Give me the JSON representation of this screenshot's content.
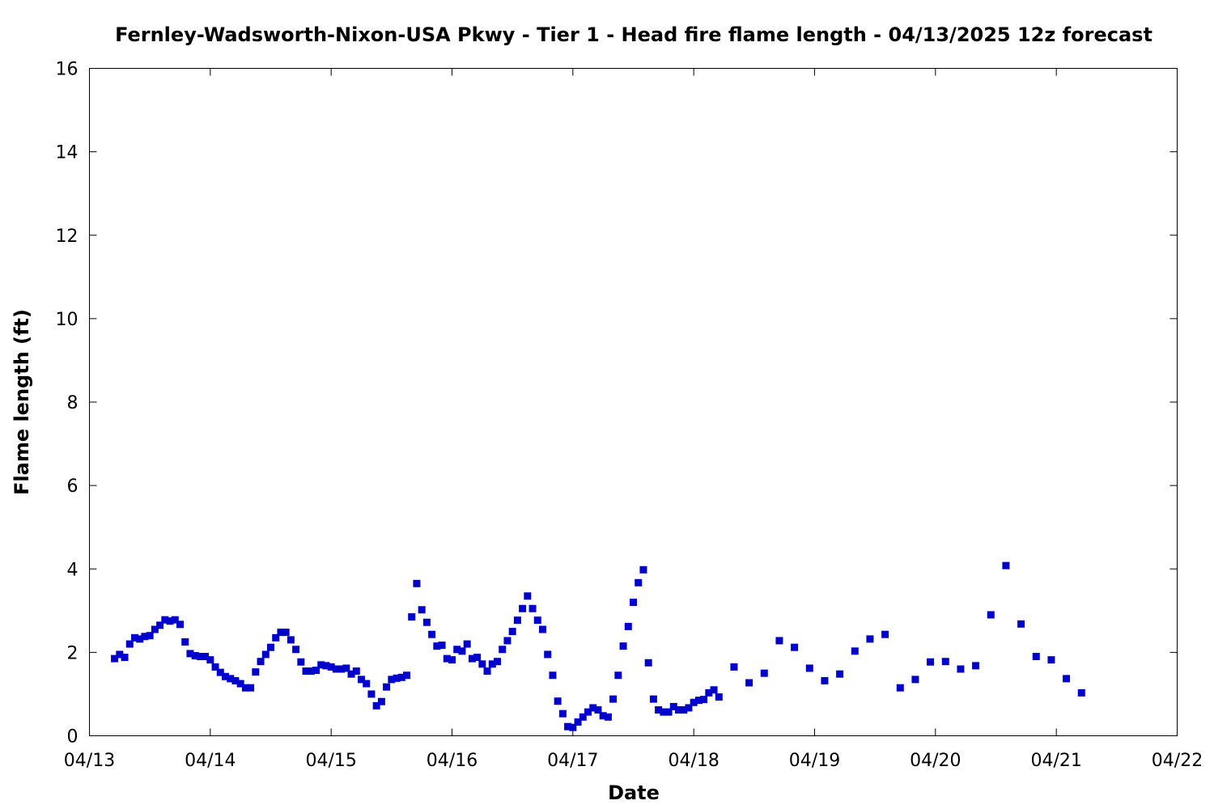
{
  "chart_data": {
    "type": "scatter",
    "title": "Fernley-Wadsworth-Nixon-USA Pkwy - Tier 1 - Head fire flame length - 04/13/2025 12z forecast",
    "xlabel": "Date",
    "ylabel": "Flame length (ft)",
    "xlim": [
      "2025-04-13T00:00",
      "2025-04-22T00:00"
    ],
    "ylim": [
      0,
      16
    ],
    "xticks": [
      "04/13",
      "04/14",
      "04/15",
      "04/16",
      "04/17",
      "04/18",
      "04/19",
      "04/20",
      "04/21",
      "04/22"
    ],
    "yticks": [
      0,
      2,
      4,
      6,
      8,
      10,
      12,
      14,
      16
    ],
    "grid": false,
    "marker_color": "#0000cc",
    "series": [
      {
        "x": [
          "2025-04-13T05:00",
          "2025-04-13T06:00",
          "2025-04-13T07:00",
          "2025-04-13T08:00",
          "2025-04-13T09:00",
          "2025-04-13T10:00",
          "2025-04-13T11:00",
          "2025-04-13T12:00",
          "2025-04-13T13:00",
          "2025-04-13T14:00",
          "2025-04-13T15:00",
          "2025-04-13T16:00",
          "2025-04-13T17:00",
          "2025-04-13T18:00",
          "2025-04-13T19:00",
          "2025-04-13T20:00",
          "2025-04-13T21:00",
          "2025-04-13T22:00",
          "2025-04-13T23:00",
          "2025-04-14T00:00",
          "2025-04-14T01:00",
          "2025-04-14T02:00",
          "2025-04-14T03:00",
          "2025-04-14T04:00",
          "2025-04-14T05:00",
          "2025-04-14T06:00",
          "2025-04-14T07:00",
          "2025-04-14T08:00",
          "2025-04-14T09:00",
          "2025-04-14T10:00",
          "2025-04-14T11:00",
          "2025-04-14T12:00",
          "2025-04-14T13:00",
          "2025-04-14T14:00",
          "2025-04-14T15:00",
          "2025-04-14T16:00",
          "2025-04-14T17:00",
          "2025-04-14T18:00",
          "2025-04-14T19:00",
          "2025-04-14T20:00",
          "2025-04-14T21:00",
          "2025-04-14T22:00",
          "2025-04-14T23:00",
          "2025-04-15T00:00",
          "2025-04-15T01:00",
          "2025-04-15T02:00",
          "2025-04-15T03:00",
          "2025-04-15T04:00",
          "2025-04-15T05:00",
          "2025-04-15T06:00",
          "2025-04-15T07:00",
          "2025-04-15T08:00",
          "2025-04-15T09:00",
          "2025-04-15T10:00",
          "2025-04-15T11:00",
          "2025-04-15T12:00",
          "2025-04-15T13:00",
          "2025-04-15T14:00",
          "2025-04-15T15:00",
          "2025-04-15T16:00",
          "2025-04-15T17:00",
          "2025-04-15T18:00",
          "2025-04-15T19:00",
          "2025-04-15T20:00",
          "2025-04-15T21:00",
          "2025-04-15T22:00",
          "2025-04-15T23:00",
          "2025-04-16T00:00",
          "2025-04-16T01:00",
          "2025-04-16T02:00",
          "2025-04-16T03:00",
          "2025-04-16T04:00",
          "2025-04-16T05:00",
          "2025-04-16T06:00",
          "2025-04-16T07:00",
          "2025-04-16T08:00",
          "2025-04-16T09:00",
          "2025-04-16T10:00",
          "2025-04-16T11:00",
          "2025-04-16T12:00",
          "2025-04-16T13:00",
          "2025-04-16T14:00",
          "2025-04-16T15:00",
          "2025-04-16T16:00",
          "2025-04-16T17:00",
          "2025-04-16T18:00",
          "2025-04-16T19:00",
          "2025-04-16T20:00",
          "2025-04-16T21:00",
          "2025-04-16T22:00",
          "2025-04-16T23:00",
          "2025-04-17T00:00",
          "2025-04-17T01:00",
          "2025-04-17T02:00",
          "2025-04-17T03:00",
          "2025-04-17T04:00",
          "2025-04-17T05:00",
          "2025-04-17T06:00",
          "2025-04-17T07:00",
          "2025-04-17T08:00",
          "2025-04-17T09:00",
          "2025-04-17T10:00",
          "2025-04-17T11:00",
          "2025-04-17T12:00",
          "2025-04-17T13:00",
          "2025-04-17T14:00",
          "2025-04-17T15:00",
          "2025-04-17T16:00",
          "2025-04-17T17:00",
          "2025-04-17T18:00",
          "2025-04-17T19:00",
          "2025-04-17T20:00",
          "2025-04-17T21:00",
          "2025-04-17T22:00",
          "2025-04-17T23:00",
          "2025-04-18T00:00",
          "2025-04-18T01:00",
          "2025-04-18T02:00",
          "2025-04-18T03:00",
          "2025-04-18T04:00",
          "2025-04-18T05:00",
          "2025-04-18T08:00",
          "2025-04-18T11:00",
          "2025-04-18T14:00",
          "2025-04-18T17:00",
          "2025-04-18T20:00",
          "2025-04-18T23:00",
          "2025-04-19T02:00",
          "2025-04-19T05:00",
          "2025-04-19T08:00",
          "2025-04-19T11:00",
          "2025-04-19T14:00",
          "2025-04-19T17:00",
          "2025-04-19T20:00",
          "2025-04-19T23:00",
          "2025-04-20T02:00",
          "2025-04-20T05:00",
          "2025-04-20T08:00",
          "2025-04-20T11:00",
          "2025-04-20T14:00",
          "2025-04-20T17:00",
          "2025-04-20T20:00",
          "2025-04-20T23:00",
          "2025-04-21T02:00",
          "2025-04-21T05:00"
        ],
        "y": [
          1.85,
          1.95,
          1.88,
          2.2,
          2.35,
          2.32,
          2.38,
          2.4,
          2.55,
          2.65,
          2.78,
          2.75,
          2.78,
          2.67,
          2.25,
          1.97,
          1.92,
          1.9,
          1.9,
          1.82,
          1.65,
          1.52,
          1.42,
          1.37,
          1.32,
          1.25,
          1.15,
          1.15,
          1.53,
          1.78,
          1.95,
          2.12,
          2.35,
          2.48,
          2.48,
          2.3,
          2.07,
          1.77,
          1.55,
          1.55,
          1.57,
          1.7,
          1.68,
          1.65,
          1.6,
          1.6,
          1.62,
          1.48,
          1.55,
          1.35,
          1.25,
          1.0,
          0.72,
          0.82,
          1.17,
          1.35,
          1.38,
          1.4,
          1.45,
          2.85,
          3.65,
          3.02,
          2.72,
          2.43,
          2.15,
          2.17,
          1.85,
          1.82,
          2.07,
          2.03,
          2.2,
          1.85,
          1.88,
          1.72,
          1.55,
          1.72,
          1.78,
          2.07,
          2.28,
          2.5,
          2.77,
          3.05,
          3.35,
          3.05,
          2.77,
          2.55,
          1.95,
          1.45,
          0.83,
          0.53,
          0.22,
          0.2,
          0.33,
          0.45,
          0.57,
          0.67,
          0.62,
          0.48,
          0.45,
          0.88,
          1.45,
          2.15,
          2.62,
          3.2,
          3.67,
          3.98,
          1.75,
          0.88,
          0.62,
          0.57,
          0.57,
          0.7,
          0.62,
          0.62,
          0.67,
          0.8,
          0.85,
          0.87,
          1.03,
          1.1,
          0.93,
          1.65,
          1.27,
          1.5,
          2.28,
          2.12,
          1.62,
          1.32,
          1.48,
          2.03,
          2.32,
          2.43,
          1.15,
          1.35,
          1.77,
          1.78,
          1.6,
          1.68,
          2.9,
          4.08,
          2.68,
          1.9,
          1.82,
          1.37,
          1.03
        ]
      }
    ]
  }
}
